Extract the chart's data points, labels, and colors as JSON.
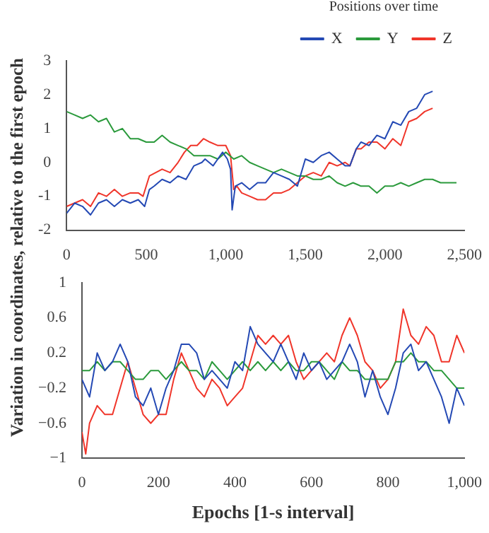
{
  "chart_data": [
    {
      "type": "line",
      "ylabel": "Variation in coordinates, relative to the first epoch",
      "legend_title": "Positions over time",
      "legend": "top right",
      "grid": false,
      "marker": "none",
      "xlim": [
        0,
        2500
      ],
      "xticks": [
        0,
        500,
        {
          "value": 1000,
          "label": "1,000"
        },
        {
          "value": 1500,
          "label": "1,500"
        },
        {
          "value": 2000,
          "label": "2,000"
        },
        {
          "value": 2500,
          "label": "2,500"
        }
      ],
      "ylim": [
        -2,
        3
      ],
      "yticks": [
        -2,
        -1,
        0,
        1,
        2,
        3
      ],
      "series": [
        {
          "name": "X",
          "color": "#2449b4",
          "x": [
            0,
            50,
            100,
            150,
            200,
            250,
            300,
            350,
            400,
            450,
            490,
            520,
            550,
            600,
            650,
            700,
            750,
            800,
            850,
            870,
            920,
            950,
            980,
            1010,
            1030,
            1040,
            1060,
            1100,
            1150,
            1200,
            1250,
            1300,
            1350,
            1400,
            1450,
            1500,
            1550,
            1600,
            1650,
            1700,
            1750,
            1780,
            1820,
            1850,
            1900,
            1950,
            2000,
            2050,
            2100,
            2150,
            2200,
            2250,
            2300
          ],
          "values": [
            -1.5,
            -1.2,
            -1.3,
            -1.55,
            -1.2,
            -1.1,
            -1.3,
            -1.1,
            -1.2,
            -1.1,
            -1.3,
            -0.8,
            -0.7,
            -0.5,
            -0.6,
            -0.4,
            -0.5,
            -0.1,
            0,
            0.1,
            -0.1,
            0.1,
            0.3,
            0.1,
            -0.2,
            -1.4,
            -0.7,
            -0.6,
            -0.8,
            -0.6,
            -0.6,
            -0.3,
            -0.4,
            -0.5,
            -0.7,
            0.1,
            0,
            0.2,
            0.3,
            0.1,
            -0.1,
            -0.1,
            0.4,
            0.6,
            0.5,
            0.8,
            0.7,
            1.2,
            1.1,
            1.5,
            1.6,
            2,
            2.1
          ]
        },
        {
          "name": "Y",
          "color": "#2b9a3c",
          "x": [
            0,
            50,
            100,
            150,
            200,
            250,
            300,
            350,
            400,
            450,
            500,
            550,
            600,
            650,
            700,
            750,
            800,
            850,
            900,
            950,
            1000,
            1050,
            1100,
            1150,
            1200,
            1250,
            1300,
            1350,
            1400,
            1450,
            1500,
            1550,
            1600,
            1650,
            1700,
            1750,
            1800,
            1850,
            1900,
            1950,
            2000,
            2050,
            2100,
            2150,
            2200,
            2250,
            2300,
            2350,
            2400,
            2450
          ],
          "values": [
            1.5,
            1.4,
            1.3,
            1.4,
            1.2,
            1.3,
            0.9,
            1,
            0.7,
            0.7,
            0.6,
            0.6,
            0.8,
            0.6,
            0.5,
            0.4,
            0.2,
            0.2,
            0.2,
            0.1,
            0.3,
            0.1,
            0.2,
            0,
            -0.1,
            -0.2,
            -0.3,
            -0.2,
            -0.3,
            -0.4,
            -0.4,
            -0.5,
            -0.5,
            -0.4,
            -0.6,
            -0.7,
            -0.6,
            -0.7,
            -0.7,
            -0.9,
            -0.7,
            -0.7,
            -0.6,
            -0.7,
            -0.6,
            -0.5,
            -0.5,
            -0.6,
            -0.6,
            -0.6
          ]
        },
        {
          "name": "Z",
          "color": "#f0352a",
          "x": [
            0,
            50,
            100,
            150,
            200,
            250,
            300,
            350,
            400,
            450,
            480,
            520,
            560,
            600,
            650,
            700,
            740,
            780,
            820,
            860,
            900,
            950,
            1000,
            1030,
            1050,
            1070,
            1100,
            1150,
            1200,
            1250,
            1300,
            1350,
            1400,
            1450,
            1500,
            1550,
            1600,
            1650,
            1700,
            1750,
            1780,
            1820,
            1850,
            1900,
            1950,
            2000,
            2050,
            2100,
            2150,
            2200,
            2250,
            2300
          ],
          "values": [
            -1.3,
            -1.2,
            -1.1,
            -1.3,
            -0.9,
            -1,
            -0.8,
            -1,
            -0.9,
            -0.9,
            -1,
            -0.4,
            -0.3,
            -0.2,
            -0.3,
            0,
            0.3,
            0.5,
            0.5,
            0.7,
            0.6,
            0.5,
            0.5,
            0.2,
            -0.8,
            -0.7,
            -0.9,
            -1,
            -1.1,
            -1.1,
            -0.9,
            -0.9,
            -0.8,
            -0.6,
            -0.4,
            -0.3,
            -0.4,
            0,
            -0.1,
            0,
            -0.1,
            0.4,
            0.4,
            0.6,
            0.6,
            0.4,
            0.7,
            0.5,
            1.2,
            1.3,
            1.5,
            1.6
          ]
        }
      ]
    },
    {
      "type": "line",
      "xlabel": "Epochs [1-s interval]",
      "grid": false,
      "marker": "none",
      "xlim": [
        0,
        1000
      ],
      "xticks": [
        0,
        200,
        400,
        600,
        800,
        {
          "value": 1000,
          "label": "1,000"
        }
      ],
      "ylim": [
        -1,
        1
      ],
      "yticks": [
        {
          "value": -1,
          "label": "−1"
        },
        {
          "value": -0.6,
          "label": "−0.6"
        },
        {
          "value": -0.2,
          "label": "−0.2"
        },
        0.2,
        0.6,
        1
      ],
      "series": [
        {
          "color": "#2449b4",
          "x": [
            0,
            20,
            40,
            60,
            80,
            100,
            120,
            140,
            160,
            180,
            200,
            220,
            240,
            260,
            280,
            300,
            320,
            340,
            360,
            380,
            400,
            420,
            440,
            460,
            480,
            500,
            520,
            540,
            560,
            580,
            600,
            620,
            640,
            660,
            680,
            700,
            720,
            740,
            760,
            780,
            800,
            820,
            840,
            860,
            880,
            900,
            920,
            940,
            960,
            980,
            1000
          ],
          "values": [
            -0.1,
            -0.3,
            0.2,
            0,
            0.1,
            0.3,
            0.1,
            -0.3,
            -0.4,
            -0.2,
            -0.5,
            -0.2,
            0,
            0.3,
            0.3,
            0.2,
            -0.1,
            0,
            -0.1,
            -0.2,
            0.1,
            0,
            0.5,
            0.3,
            0.2,
            0.1,
            0.3,
            0.1,
            -0.1,
            0.2,
            0,
            0.1,
            -0.1,
            0,
            0.1,
            0.3,
            0.1,
            -0.3,
            0,
            -0.3,
            -0.5,
            -0.2,
            0.2,
            0.3,
            0,
            0.1,
            -0.1,
            -0.3,
            -0.6,
            -0.2,
            -0.4
          ]
        },
        {
          "color": "#2b9a3c",
          "x": [
            0,
            20,
            40,
            60,
            80,
            100,
            120,
            140,
            160,
            180,
            200,
            220,
            240,
            260,
            280,
            300,
            320,
            340,
            360,
            380,
            400,
            420,
            440,
            460,
            480,
            500,
            520,
            540,
            560,
            580,
            600,
            620,
            640,
            660,
            680,
            700,
            720,
            740,
            760,
            780,
            800,
            820,
            840,
            860,
            880,
            900,
            920,
            940,
            960,
            980,
            1000
          ],
          "values": [
            0,
            0,
            0.1,
            0,
            0.1,
            0.1,
            0,
            -0.1,
            -0.1,
            0,
            0,
            -0.1,
            0,
            0.1,
            0,
            0,
            -0.1,
            0.1,
            0,
            -0.1,
            0,
            0.1,
            0,
            0.1,
            0,
            0.1,
            0,
            0.1,
            0,
            0,
            0.1,
            0.1,
            0,
            -0.1,
            0.1,
            0,
            0,
            -0.1,
            -0.1,
            -0.1,
            -0.1,
            0.1,
            0.1,
            0.2,
            0.1,
            0.1,
            0,
            0,
            -0.1,
            -0.2,
            -0.2
          ]
        },
        {
          "color": "#f0352a",
          "x": [
            0,
            10,
            20,
            40,
            60,
            80,
            100,
            120,
            140,
            160,
            180,
            200,
            220,
            240,
            260,
            280,
            300,
            320,
            340,
            360,
            380,
            400,
            420,
            440,
            460,
            480,
            500,
            520,
            540,
            560,
            580,
            600,
            620,
            640,
            660,
            680,
            700,
            720,
            740,
            760,
            780,
            800,
            820,
            840,
            860,
            880,
            900,
            920,
            940,
            960,
            980,
            1000
          ],
          "values": [
            -0.7,
            -0.95,
            -0.6,
            -0.4,
            -0.5,
            -0.5,
            -0.2,
            0.1,
            -0.2,
            -0.5,
            -0.6,
            -0.5,
            -0.5,
            -0.1,
            0.2,
            0,
            -0.2,
            -0.3,
            -0.1,
            -0.2,
            -0.4,
            -0.3,
            -0.2,
            0.1,
            0.4,
            0.3,
            0.4,
            0.3,
            0.4,
            0.1,
            -0.1,
            0,
            0.1,
            0.2,
            0.1,
            0.4,
            0.6,
            0.4,
            0.1,
            0,
            -0.2,
            -0.1,
            0.1,
            0.7,
            0.4,
            0.3,
            0.5,
            0.4,
            0.1,
            0.1,
            0.4,
            0.2
          ]
        }
      ]
    }
  ]
}
